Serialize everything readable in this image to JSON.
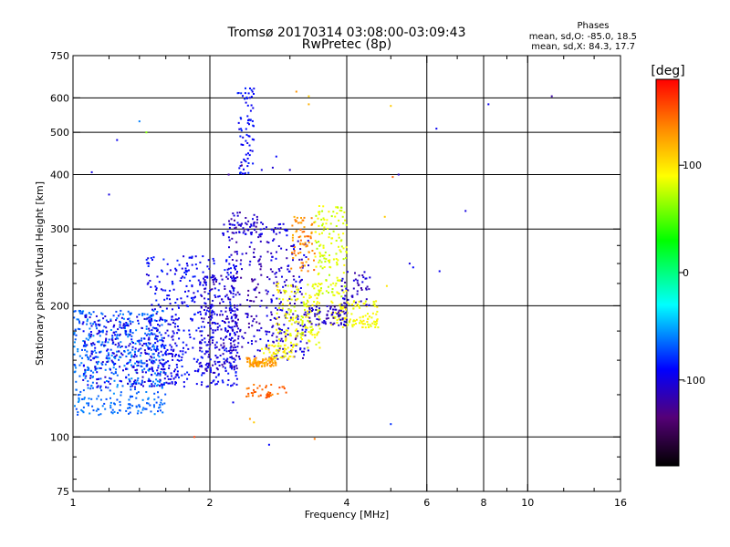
{
  "chart_data": {
    "type": "scatter",
    "title": "Tromsø 20170314 03:08:00-03:09:43",
    "subtitle": "RwPretec (8p)",
    "xlabel": "Frequency [MHz]",
    "ylabel": "Stationary phase Virtual Height [km]",
    "x_scale": "log",
    "y_scale": "log",
    "xlim": [
      1,
      16
    ],
    "ylim": [
      75,
      750
    ],
    "x_ticks": [
      1,
      2,
      4,
      6,
      8,
      10,
      16
    ],
    "x_tick_labels": [
      "1",
      "2",
      "4",
      "6",
      "8",
      "10",
      "16"
    ],
    "x_minor_ticks": [
      1.2,
      1.4,
      1.6,
      1.8,
      3,
      5,
      7,
      9,
      12,
      14
    ],
    "y_ticks": [
      75,
      100,
      200,
      300,
      400,
      500,
      600,
      750
    ],
    "y_tick_labels": [
      "75",
      "100",
      "200",
      "300",
      "400",
      "500",
      "600",
      "750"
    ],
    "y_minor_ticks": [
      80,
      90,
      125,
      150,
      175,
      225,
      250,
      275
    ],
    "grid_x": [
      2,
      4,
      6,
      8,
      10
    ],
    "grid_y": [
      100,
      200,
      300,
      400,
      500,
      600
    ],
    "grid": true,
    "phases_legend": {
      "title": "Phases",
      "line_o": "mean, sd,O: -85.0, 18.5",
      "line_x": "mean, sd,X:  84.3, 17.7"
    },
    "colorbar": {
      "unit_label": "[deg]",
      "range": [
        -180,
        180
      ],
      "tick_values": [
        100,
        0,
        -100
      ],
      "tick_labels": [
        "100",
        "0",
        "-100"
      ],
      "stops": [
        {
          "value": 180,
          "color": "#ff0000"
        },
        {
          "value": 135,
          "color": "#ff8800"
        },
        {
          "value": 90,
          "color": "#ffff00"
        },
        {
          "value": 30,
          "color": "#00ff00"
        },
        {
          "value": -30,
          "color": "#00ffff"
        },
        {
          "value": -90,
          "color": "#0000ff"
        },
        {
          "value": -135,
          "color": "#550077"
        },
        {
          "value": -180,
          "color": "#000000"
        }
      ]
    },
    "clusters": [
      {
        "x": [
          1.0,
          1.6
        ],
        "h": [
          112,
          195
        ],
        "phase": [
          -75,
          -55
        ],
        "n": 500
      },
      {
        "x": [
          1.05,
          1.7
        ],
        "h": [
          130,
          190
        ],
        "phase": [
          -110,
          -85
        ],
        "n": 280
      },
      {
        "x": [
          1.45,
          2.3
        ],
        "h": [
          130,
          260
        ],
        "phase": [
          -105,
          -80
        ],
        "n": 450
      },
      {
        "x": [
          1.9,
          2.3
        ],
        "h": [
          140,
          235
        ],
        "phase": [
          -125,
          -95
        ],
        "n": 160
      },
      {
        "x": [
          2.2,
          2.6
        ],
        "h": [
          150,
          330
        ],
        "phase": [
          -125,
          -95
        ],
        "n": 170
      },
      {
        "x": [
          2.65,
          3.3
        ],
        "h": [
          150,
          285
        ],
        "phase": [
          -120,
          -90
        ],
        "n": 200
      },
      {
        "x": [
          2.4,
          2.8
        ],
        "h": [
          145,
          152
        ],
        "phase": [
          115,
          140
        ],
        "n": 90
      },
      {
        "x": [
          2.4,
          2.95
        ],
        "h": [
          123,
          132
        ],
        "phase": [
          135,
          160
        ],
        "n": 40
      },
      {
        "x": [
          2.6,
          3.1
        ],
        "h": [
          150,
          165
        ],
        "phase": [
          80,
          105
        ],
        "n": 50
      },
      {
        "x": [
          2.8,
          3.5
        ],
        "h": [
          160,
          225
        ],
        "phase": [
          75,
          100
        ],
        "n": 170
      },
      {
        "x": [
          3.0,
          3.4
        ],
        "h": [
          240,
          320
        ],
        "phase": [
          120,
          150
        ],
        "n": 70
      },
      {
        "x": [
          3.4,
          4.0
        ],
        "h": [
          210,
          340
        ],
        "phase": [
          70,
          95
        ],
        "n": 150
      },
      {
        "x": [
          3.7,
          4.7
        ],
        "h": [
          178,
          205
        ],
        "phase": [
          80,
          100
        ],
        "n": 110
      },
      {
        "x": [
          3.3,
          4.0
        ],
        "h": [
          180,
          200
        ],
        "phase": [
          -125,
          -95
        ],
        "n": 70
      },
      {
        "x": [
          3.9,
          4.5
        ],
        "h": [
          200,
          240
        ],
        "phase": [
          -120,
          -95
        ],
        "n": 50
      },
      {
        "x": [
          2.3,
          2.5
        ],
        "h": [
          400,
          640
        ],
        "phase": [
          -100,
          -80
        ],
        "n": 70
      },
      {
        "x": [
          2.1,
          3.0
        ],
        "h": [
          290,
          310
        ],
        "phase": [
          -110,
          -90
        ],
        "n": 50
      }
    ],
    "sparse_points": [
      [
        1.25,
        480,
        -95
      ],
      [
        1.45,
        500,
        60
      ],
      [
        1.2,
        360,
        -100
      ],
      [
        1.1,
        405,
        -100
      ],
      [
        2.45,
        600,
        -100
      ],
      [
        2.47,
        625,
        -80
      ],
      [
        2.5,
        630,
        -95
      ],
      [
        3.1,
        620,
        130
      ],
      [
        3.3,
        605,
        110
      ],
      [
        3.3,
        580,
        120
      ],
      [
        5.0,
        575,
        110
      ],
      [
        6.3,
        510,
        -95
      ],
      [
        8.2,
        580,
        -95
      ],
      [
        11.3,
        605,
        -120
      ],
      [
        7.3,
        330,
        -100
      ],
      [
        6.4,
        240,
        -95
      ],
      [
        5.5,
        250,
        -100
      ],
      [
        5.6,
        245,
        -90
      ],
      [
        4.9,
        222,
        100
      ],
      [
        5.05,
        395,
        150
      ],
      [
        5.2,
        400,
        -110
      ],
      [
        4.85,
        320,
        110
      ],
      [
        3.4,
        99,
        140
      ],
      [
        5.0,
        107,
        -80
      ],
      [
        2.7,
        96,
        -90
      ],
      [
        1.85,
        100,
        160
      ],
      [
        2.45,
        110,
        130
      ],
      [
        2.5,
        108,
        110
      ],
      [
        2.25,
        120,
        -95
      ],
      [
        1.4,
        530,
        -60
      ],
      [
        2.2,
        400,
        -120
      ],
      [
        2.35,
        420,
        -130
      ],
      [
        2.6,
        410,
        -100
      ],
      [
        2.75,
        415,
        -105
      ],
      [
        3.0,
        410,
        -110
      ],
      [
        2.8,
        440,
        -90
      ]
    ]
  }
}
